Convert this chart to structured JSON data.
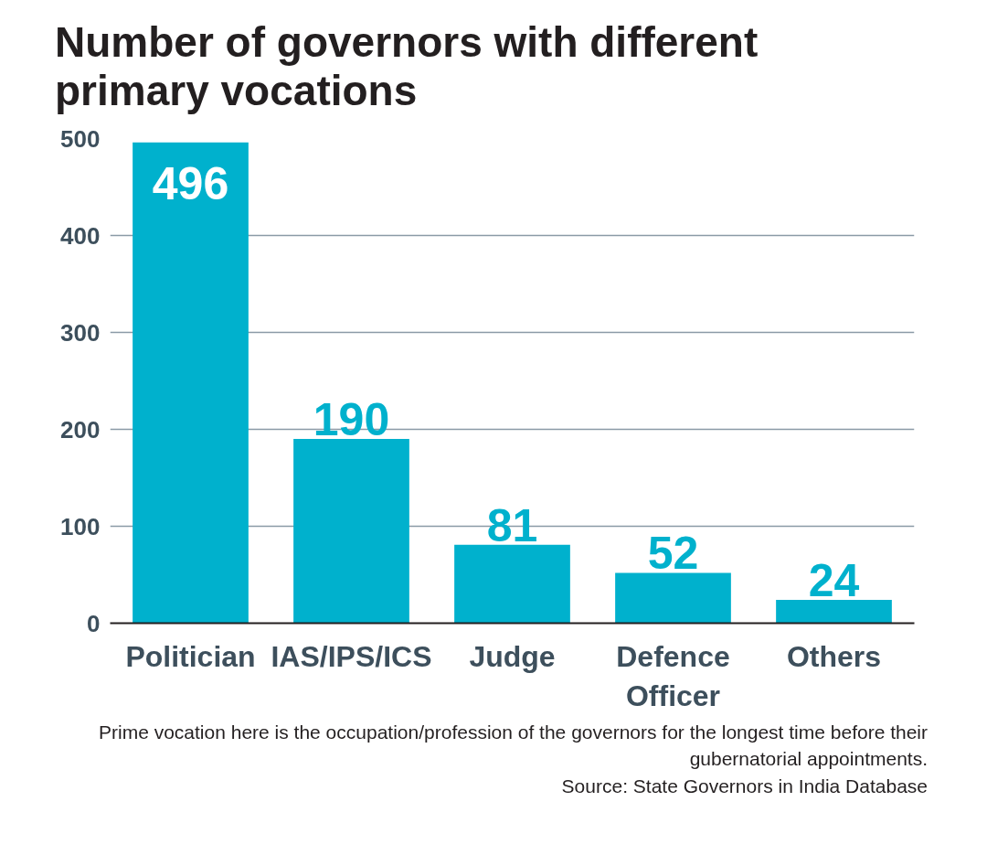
{
  "chart_data": {
    "type": "bar",
    "title": "Number of governors with different primary vocations",
    "categories": [
      "Politician",
      "IAS/IPS/ICS",
      "Judge",
      "Defence Officer",
      "Others"
    ],
    "values": [
      496,
      190,
      81,
      52,
      24
    ],
    "color": "#00b1cd",
    "ylim": [
      0,
      500
    ],
    "yticks": [
      0,
      100,
      200,
      300,
      400,
      500
    ],
    "grid": "y",
    "data_labels": true,
    "annotations": [
      "Prime vocation here is the occupation/profession of the governors for the longest time before their gubernatorial appointments.",
      "Source: State Governors in India Database"
    ]
  }
}
